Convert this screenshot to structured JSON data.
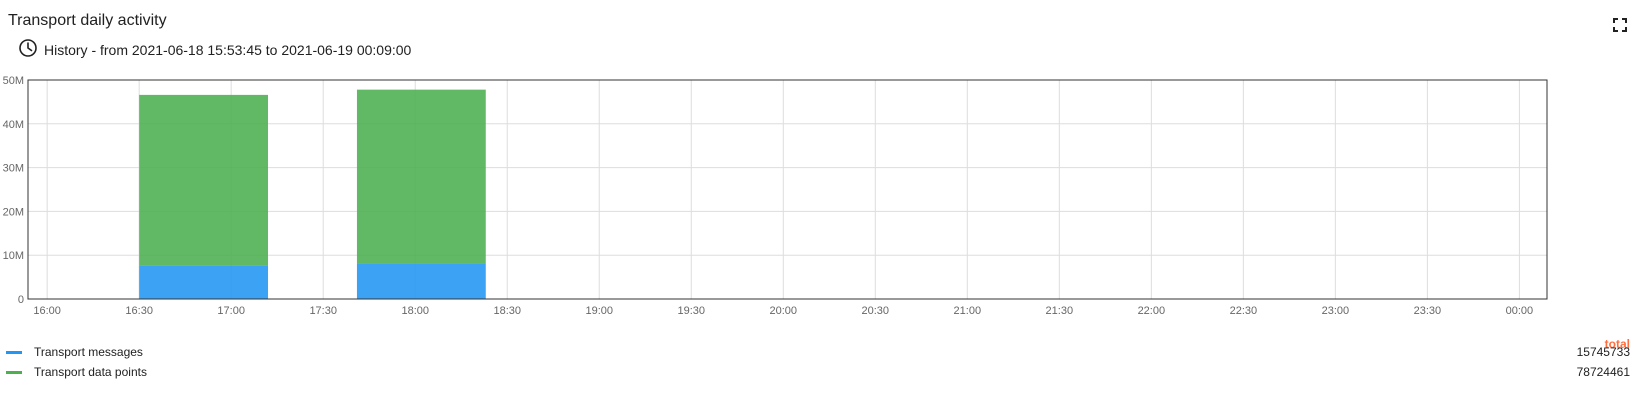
{
  "widget": {
    "title": "Transport daily activity",
    "history_label": "History - from 2021-06-18 15:53:45 to 2021-06-19 00:09:00",
    "history_icon": "clock-icon",
    "fullscreen_icon": "fullscreen-icon"
  },
  "legend": {
    "total_header": "total",
    "total_color": "#ff6e40",
    "items": [
      {
        "label": "Transport messages",
        "total": "15745733",
        "color": "#2196f3"
      },
      {
        "label": "Transport data points",
        "total": "78724461",
        "color": "#4caf50"
      }
    ]
  },
  "chart_data": {
    "type": "bar",
    "stacked": true,
    "grid": true,
    "x_tick_labels": [
      "16:00",
      "16:30",
      "17:00",
      "17:30",
      "18:00",
      "18:30",
      "19:00",
      "19:30",
      "20:00",
      "20:30",
      "21:00",
      "21:30",
      "22:00",
      "22:30",
      "23:00",
      "23:30",
      "00:00"
    ],
    "y_tick_labels": [
      "0",
      "10M",
      "20M",
      "30M",
      "40M",
      "50M"
    ],
    "ylim": [
      0,
      50000000
    ],
    "xlim": [
      "2021-06-18 15:53:45",
      "2021-06-19 00:09:00"
    ],
    "bars": [
      {
        "start": "2021-06-18 16:30",
        "end": "2021-06-18 17:12"
      },
      {
        "start": "2021-06-18 17:41",
        "end": "2021-06-18 18:23"
      }
    ],
    "series": [
      {
        "name": "Transport messages",
        "color": "#2196f3",
        "values": [
          7700000,
          8000000
        ]
      },
      {
        "name": "Transport data points",
        "color": "#4caf50",
        "values": [
          38900000,
          39800000
        ]
      }
    ]
  }
}
